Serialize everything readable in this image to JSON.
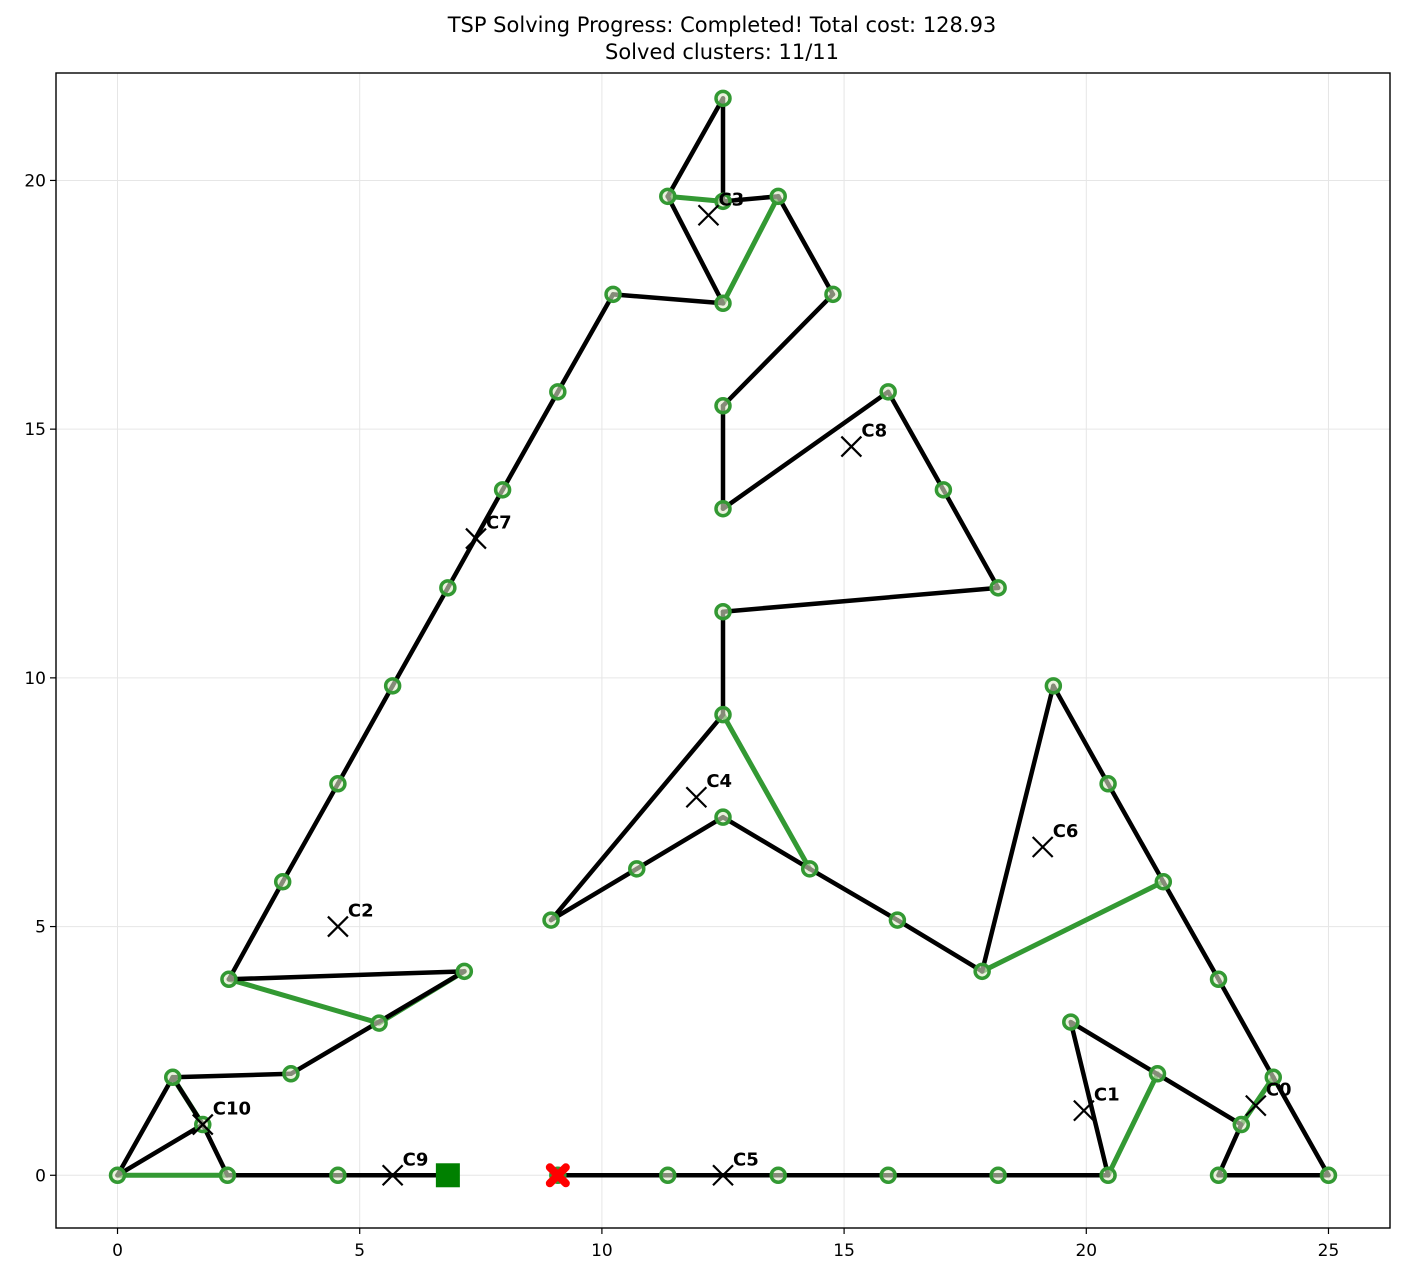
{
  "chart_data": {
    "type": "scatter",
    "title": "TSP Solving Progress: Completed! Total cost: 128.93",
    "subtitle": "Solved clusters: 11/11",
    "xlim": [
      -1.27,
      26.27
    ],
    "ylim": [
      -1.06,
      22.16
    ],
    "xticks": [
      0,
      5,
      10,
      15,
      20,
      25
    ],
    "yticks": [
      0,
      5,
      10,
      15,
      20
    ],
    "grid": true,
    "colors": {
      "intra_edge": "#339933",
      "tour_edge": "#000000",
      "node_edge": "#339933",
      "start_marker": "#008000",
      "end_marker": "#ff0000",
      "centroid": "#000000"
    },
    "nodes": [
      [
        0,
        0
      ],
      [
        2.27,
        0
      ],
      [
        4.55,
        0
      ],
      [
        6.82,
        0
      ],
      [
        9.09,
        0
      ],
      [
        11.36,
        0
      ],
      [
        13.64,
        0
      ],
      [
        15.91,
        0
      ],
      [
        18.18,
        0
      ],
      [
        20.45,
        0
      ],
      [
        22.73,
        0
      ],
      [
        25,
        0
      ],
      [
        1.14,
        1.97
      ],
      [
        3.41,
        5.9
      ],
      [
        4.55,
        7.87
      ],
      [
        5.68,
        9.84
      ],
      [
        6.82,
        11.81
      ],
      [
        7.95,
        13.78
      ],
      [
        9.09,
        15.75
      ],
      [
        10.23,
        17.71
      ],
      [
        11.36,
        19.68
      ],
      [
        12.5,
        21.65
      ],
      [
        13.64,
        19.68
      ],
      [
        14.77,
        17.71
      ],
      [
        15.91,
        15.75
      ],
      [
        17.05,
        13.78
      ],
      [
        18.18,
        11.81
      ],
      [
        19.32,
        9.84
      ],
      [
        20.45,
        7.87
      ],
      [
        21.59,
        5.9
      ],
      [
        22.73,
        3.94
      ],
      [
        23.86,
        1.97
      ],
      [
        1.76,
        1.02
      ],
      [
        3.58,
        2.04
      ],
      [
        5.4,
        3.06
      ],
      [
        7.16,
        4.1
      ],
      [
        2.3,
        3.94
      ],
      [
        8.95,
        5.13
      ],
      [
        10.72,
        6.16
      ],
      [
        12.5,
        7.2
      ],
      [
        14.29,
        6.16
      ],
      [
        16.1,
        5.13
      ],
      [
        17.85,
        4.1
      ],
      [
        19.68,
        3.08
      ],
      [
        21.47,
        2.04
      ],
      [
        23.2,
        1.02
      ],
      [
        12.5,
        9.26
      ],
      [
        12.5,
        11.33
      ],
      [
        12.5,
        13.4
      ],
      [
        12.5,
        15.47
      ],
      [
        12.5,
        17.53
      ],
      [
        12.5,
        19.58
      ]
    ],
    "tour_edges": [
      [
        [
          6.82,
          0
        ],
        [
          4.55,
          0
        ]
      ],
      [
        [
          4.55,
          0
        ],
        [
          2.27,
          0
        ]
      ],
      [
        [
          2.27,
          0
        ],
        [
          1.76,
          1.02
        ]
      ],
      [
        [
          1.76,
          1.02
        ],
        [
          1.14,
          1.97
        ]
      ],
      [
        [
          1.14,
          1.97
        ],
        [
          0,
          0
        ]
      ],
      [
        [
          0,
          0
        ],
        [
          1.76,
          1.02
        ]
      ],
      [
        [
          1.14,
          1.97
        ],
        [
          3.58,
          2.04
        ]
      ],
      [
        [
          3.58,
          2.04
        ],
        [
          7.16,
          4.1
        ]
      ],
      [
        [
          7.16,
          4.1
        ],
        [
          2.3,
          3.94
        ]
      ],
      [
        [
          2.3,
          3.94
        ],
        [
          3.41,
          5.9
        ]
      ],
      [
        [
          3.41,
          5.9
        ],
        [
          4.55,
          7.87
        ]
      ],
      [
        [
          4.55,
          7.87
        ],
        [
          5.68,
          9.84
        ]
      ],
      [
        [
          5.68,
          9.84
        ],
        [
          6.82,
          11.81
        ]
      ],
      [
        [
          6.82,
          11.81
        ],
        [
          7.95,
          13.78
        ]
      ],
      [
        [
          7.95,
          13.78
        ],
        [
          9.09,
          15.75
        ]
      ],
      [
        [
          9.09,
          15.75
        ],
        [
          10.23,
          17.71
        ]
      ],
      [
        [
          10.23,
          17.71
        ],
        [
          12.5,
          17.53
        ]
      ],
      [
        [
          12.5,
          17.53
        ],
        [
          11.36,
          19.68
        ]
      ],
      [
        [
          11.36,
          19.68
        ],
        [
          12.5,
          21.65
        ]
      ],
      [
        [
          12.5,
          21.65
        ],
        [
          12.5,
          19.58
        ]
      ],
      [
        [
          12.5,
          19.58
        ],
        [
          13.64,
          19.68
        ]
      ],
      [
        [
          13.64,
          19.68
        ],
        [
          14.77,
          17.71
        ]
      ],
      [
        [
          14.77,
          17.71
        ],
        [
          12.5,
          15.47
        ]
      ],
      [
        [
          12.5,
          15.47
        ],
        [
          12.5,
          13.4
        ]
      ],
      [
        [
          12.5,
          13.4
        ],
        [
          15.91,
          15.75
        ]
      ],
      [
        [
          15.91,
          15.75
        ],
        [
          17.05,
          13.78
        ]
      ],
      [
        [
          17.05,
          13.78
        ],
        [
          18.18,
          11.81
        ]
      ],
      [
        [
          18.18,
          11.81
        ],
        [
          12.5,
          11.33
        ]
      ],
      [
        [
          12.5,
          11.33
        ],
        [
          12.5,
          9.26
        ]
      ],
      [
        [
          12.5,
          9.26
        ],
        [
          8.95,
          5.13
        ]
      ],
      [
        [
          8.95,
          5.13
        ],
        [
          10.72,
          6.16
        ]
      ],
      [
        [
          10.72,
          6.16
        ],
        [
          12.5,
          7.2
        ]
      ],
      [
        [
          12.5,
          7.2
        ],
        [
          14.29,
          6.16
        ]
      ],
      [
        [
          14.29,
          6.16
        ],
        [
          16.1,
          5.13
        ]
      ],
      [
        [
          16.1,
          5.13
        ],
        [
          17.85,
          4.1
        ]
      ],
      [
        [
          17.85,
          4.1
        ],
        [
          19.32,
          9.84
        ]
      ],
      [
        [
          19.32,
          9.84
        ],
        [
          20.45,
          7.87
        ]
      ],
      [
        [
          20.45,
          7.87
        ],
        [
          21.59,
          5.9
        ]
      ],
      [
        [
          21.59,
          5.9
        ],
        [
          22.73,
          3.94
        ]
      ],
      [
        [
          22.73,
          3.94
        ],
        [
          23.86,
          1.97
        ]
      ],
      [
        [
          23.86,
          1.97
        ],
        [
          25,
          0
        ]
      ],
      [
        [
          25,
          0
        ],
        [
          22.73,
          0
        ]
      ],
      [
        [
          22.73,
          0
        ],
        [
          23.2,
          1.02
        ]
      ],
      [
        [
          23.2,
          1.02
        ],
        [
          19.68,
          3.08
        ]
      ],
      [
        [
          19.68,
          3.08
        ],
        [
          20.45,
          0
        ]
      ],
      [
        [
          20.45,
          0
        ],
        [
          18.18,
          0
        ]
      ],
      [
        [
          18.18,
          0
        ],
        [
          15.91,
          0
        ]
      ],
      [
        [
          15.91,
          0
        ],
        [
          13.64,
          0
        ]
      ],
      [
        [
          13.64,
          0
        ],
        [
          11.36,
          0
        ]
      ],
      [
        [
          11.36,
          0
        ],
        [
          9.09,
          0
        ]
      ]
    ],
    "intra_edges": [
      [
        [
          0,
          0
        ],
        [
          2.27,
          0
        ]
      ],
      [
        [
          1.14,
          1.97
        ],
        [
          1.76,
          1.02
        ]
      ],
      [
        [
          2.3,
          3.94
        ],
        [
          5.4,
          3.06
        ]
      ],
      [
        [
          5.4,
          3.06
        ],
        [
          7.16,
          4.1
        ]
      ],
      [
        [
          11.36,
          19.68
        ],
        [
          12.5,
          19.58
        ]
      ],
      [
        [
          12.5,
          17.53
        ],
        [
          13.64,
          19.68
        ]
      ],
      [
        [
          12.5,
          9.26
        ],
        [
          14.29,
          6.16
        ]
      ],
      [
        [
          17.85,
          4.1
        ],
        [
          21.59,
          5.9
        ]
      ],
      [
        [
          20.45,
          0
        ],
        [
          21.47,
          2.04
        ]
      ],
      [
        [
          23.2,
          1.02
        ],
        [
          23.86,
          1.97
        ]
      ]
    ],
    "start": [
      6.82,
      0
    ],
    "end": [
      9.09,
      0
    ],
    "centroids": [
      {
        "label": "C0",
        "x": 23.5,
        "y": 1.4
      },
      {
        "label": "C1",
        "x": 19.95,
        "y": 1.3
      },
      {
        "label": "C2",
        "x": 4.55,
        "y": 5.0
      },
      {
        "label": "C3",
        "x": 12.2,
        "y": 19.3
      },
      {
        "label": "C4",
        "x": 11.95,
        "y": 7.6
      },
      {
        "label": "C5",
        "x": 12.5,
        "y": 0
      },
      {
        "label": "C6",
        "x": 19.1,
        "y": 6.6
      },
      {
        "label": "C7",
        "x": 7.4,
        "y": 12.8
      },
      {
        "label": "C8",
        "x": 15.15,
        "y": 14.65
      },
      {
        "label": "C9",
        "x": 5.68,
        "y": 0
      },
      {
        "label": "C10",
        "x": 1.76,
        "y": 1.02
      }
    ]
  }
}
